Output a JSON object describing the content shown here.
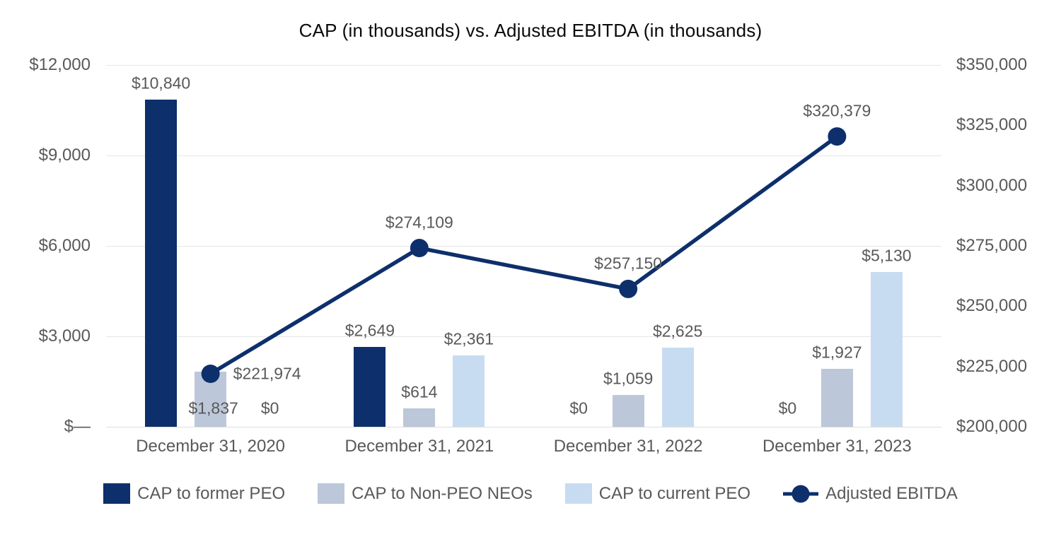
{
  "title": "CAP (in thousands) vs. Adjusted EBITDA (in thousands)",
  "colors": {
    "navy": "#0d2f6b",
    "gray_blue": "#bcc7d9",
    "light_blue": "#c7dcf0",
    "grid": "#e7e7e7",
    "text_gray": "#595959",
    "title_text": "#0a0a0a"
  },
  "chart_data": {
    "type": "bar",
    "subtype": "grouped-bars-with-line-overlay",
    "title": "CAP (in thousands) vs. Adjusted EBITDA (in thousands)",
    "categories": [
      "December 31, 2020",
      "December 31, 2021",
      "December 31, 2022",
      "December 31, 2023"
    ],
    "series": [
      {
        "name": "CAP to former PEO",
        "type": "bar",
        "axis": "left",
        "color": "#0d2f6b",
        "values": [
          10840,
          2649,
          0,
          0
        ],
        "labels": [
          "$10,840",
          "$2,649",
          "$0",
          "$0"
        ]
      },
      {
        "name": "CAP to Non-PEO NEOs",
        "type": "bar",
        "axis": "left",
        "color": "#bcc7d9",
        "values": [
          1837,
          614,
          1059,
          1927
        ],
        "labels": [
          "$1,837",
          "$614",
          "$1,059",
          "$1,927"
        ]
      },
      {
        "name": "CAP to current PEO",
        "type": "bar",
        "axis": "left",
        "color": "#c7dcf0",
        "values": [
          0,
          2361,
          2625,
          5130
        ],
        "labels": [
          "$0",
          "$2,361",
          "$2,625",
          "$5,130"
        ]
      },
      {
        "name": "Adjusted EBITDA",
        "type": "line",
        "axis": "right",
        "color": "#0d2f6b",
        "values": [
          221974,
          274109,
          257150,
          320379
        ],
        "labels": [
          "$221,974",
          "$274,109",
          "$257,150",
          "$320,379"
        ]
      }
    ],
    "left_axis": {
      "min": 0,
      "max": 12000,
      "step": 3000,
      "ticks": [
        "$12,000",
        "$9,000",
        "$6,000",
        "$3,000",
        "$—"
      ]
    },
    "right_axis": {
      "min": 200000,
      "max": 350000,
      "step": 25000,
      "ticks": [
        "$350,000",
        "$325,000",
        "$300,000",
        "$275,000",
        "$250,000",
        "$225,000",
        "$200,000"
      ]
    },
    "grid": true,
    "legend_position": "bottom",
    "legend": [
      "CAP to former PEO",
      "CAP to Non-PEO NEOs",
      "CAP to current PEO",
      "Adjusted EBITDA"
    ]
  }
}
